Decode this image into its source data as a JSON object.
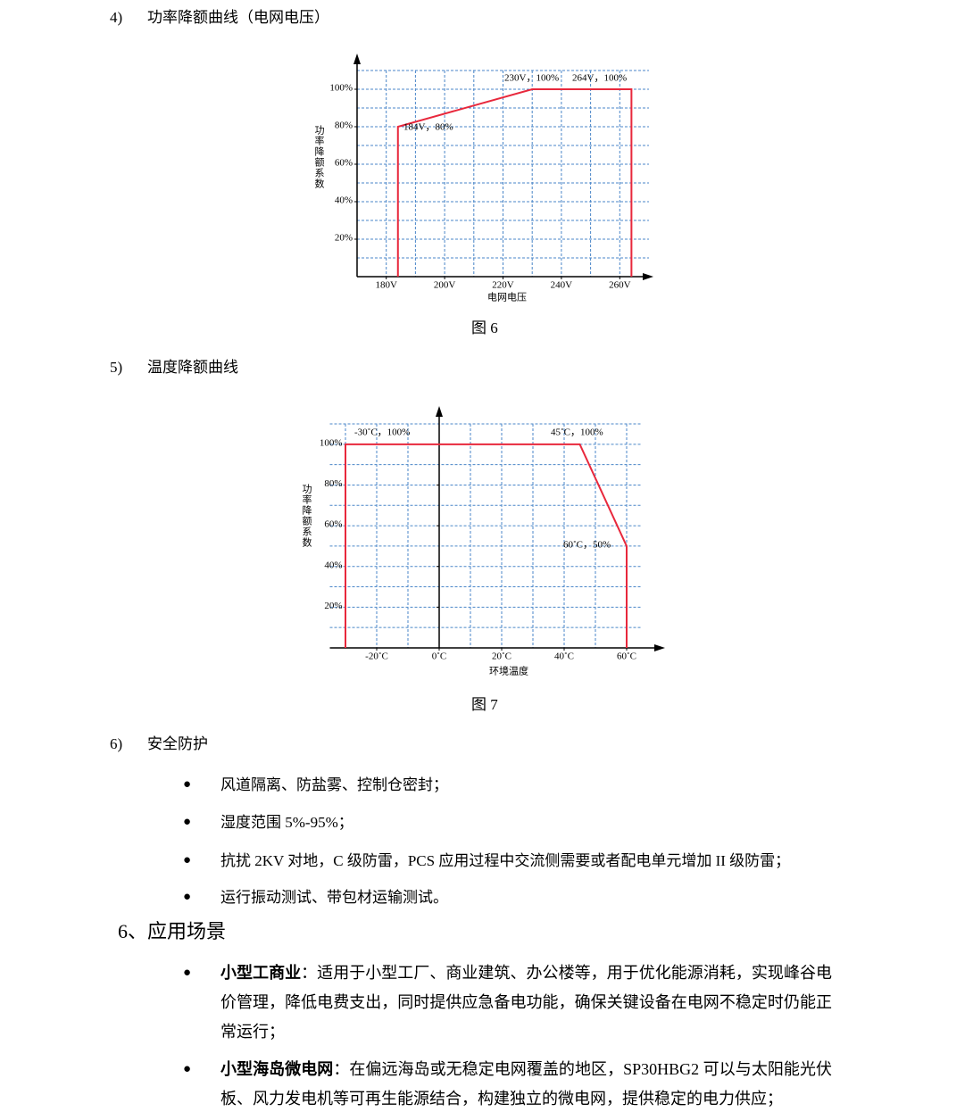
{
  "section4": {
    "number": "4)",
    "title": "功率降额曲线（电网电压）"
  },
  "figure6": "图 6",
  "section5": {
    "number": "5)",
    "title": "温度降额曲线"
  },
  "figure7": "图 7",
  "section6": {
    "number": "6)",
    "title": "安全防护",
    "bullets": [
      "风道隔离、防盐雾、控制仓密封；",
      "湿度范围 5%-95%；",
      "抗扰 2KV 对地，C 级防雷，PCS 应用过程中交流侧需要或者配电单元增加 II 级防雷；",
      "运行振动测试、带包材运输测试。"
    ]
  },
  "heading": "6、应用场景",
  "applications": [
    {
      "label": "小型工商业",
      "text": "：适用于小型工厂、商业建筑、办公楼等，用于优化能源消耗，实现峰谷电价管理，降低电费支出，同时提供应急备电功能，确保关键设备在电网不稳定时仍能正常运行；"
    },
    {
      "label": "小型海岛微电网",
      "text": "：在偏远海岛或无稳定电网覆盖的地区，SP30HBG2 可以与太阳能光伏板、风力发电机等可再生能源结合，构建独立的微电网，提供稳定的电力供应；"
    }
  ],
  "chart_data": [
    {
      "type": "line",
      "x_label": "电网电压",
      "y_label": "功率降额系数",
      "x": [
        184,
        184,
        230,
        264,
        264
      ],
      "series": [
        {
          "color": "#e8283c",
          "values": [
            0,
            80,
            100,
            100,
            0
          ]
        }
      ],
      "xlim": [
        170,
        270
      ],
      "ylim": [
        0,
        110
      ],
      "xticks": [
        {
          "value": 180,
          "label": "180V"
        },
        {
          "value": 200,
          "label": "200V"
        },
        {
          "value": 220,
          "label": "220V"
        },
        {
          "value": 240,
          "label": "240V"
        },
        {
          "value": 260,
          "label": "260V"
        }
      ],
      "yticks": [
        {
          "value": 20,
          "label": "20%"
        },
        {
          "value": 40,
          "label": "40%"
        },
        {
          "value": 60,
          "label": "60%"
        },
        {
          "value": 80,
          "label": "80%"
        },
        {
          "value": 100,
          "label": "100%"
        }
      ],
      "x_grid": [
        180,
        190,
        200,
        210,
        220,
        230,
        240,
        250,
        260
      ],
      "y_grid": [
        10,
        20,
        30,
        40,
        50,
        60,
        70,
        80,
        90,
        100,
        110
      ],
      "grid_color": "#4a86c8",
      "annotations": [
        "230V，100%",
        "264V，100%",
        "184V，80%"
      ]
    },
    {
      "type": "line",
      "x_label": "环境温度",
      "y_label": "功率降额系数",
      "x": [
        -30,
        -30,
        45,
        60,
        60
      ],
      "series": [
        {
          "color": "#e8283c",
          "values": [
            0,
            100,
            100,
            50,
            0
          ]
        }
      ],
      "xlim": [
        -35,
        65
      ],
      "ylim": [
        0,
        110
      ],
      "xticks": [
        {
          "value": -20,
          "label": "-20˚C"
        },
        {
          "value": 0,
          "label": "0˚C"
        },
        {
          "value": 20,
          "label": "20˚C"
        },
        {
          "value": 40,
          "label": "40˚C"
        },
        {
          "value": 60,
          "label": "60˚C"
        }
      ],
      "yticks": [
        {
          "value": 20,
          "label": "20%"
        },
        {
          "value": 40,
          "label": "40%"
        },
        {
          "value": 60,
          "label": "60%"
        },
        {
          "value": 80,
          "label": "80%"
        },
        {
          "value": 100,
          "label": "100%"
        }
      ],
      "x_grid": [
        -30,
        -20,
        -10,
        0,
        10,
        20,
        30,
        40,
        50,
        60
      ],
      "y_grid": [
        10,
        20,
        30,
        40,
        50,
        60,
        70,
        80,
        90,
        100,
        110
      ],
      "grid_color": "#4a86c8",
      "annotations": [
        "-30˚C，100%",
        "45˚C，100%",
        "60˚C，50%"
      ]
    }
  ]
}
